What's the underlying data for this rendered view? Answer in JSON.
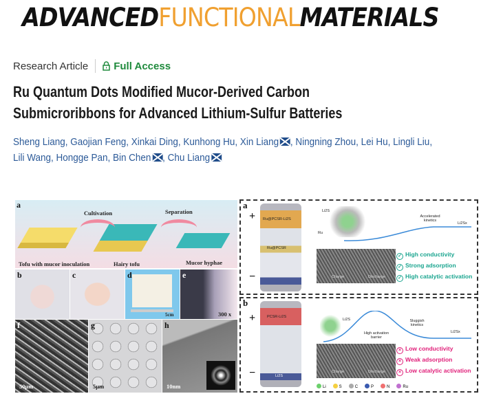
{
  "journal": {
    "logo_parts": [
      "ADVANCED",
      "FUNCTIONAL",
      "MATERIALS"
    ],
    "colors": {
      "dark": "#111111",
      "orange": "#f0a030"
    }
  },
  "article": {
    "type": "Research Article",
    "access": "Full Access",
    "access_icon": "lock-icon",
    "access_color": "#1e8a3c",
    "title_lines": [
      "Ru Quantum Dots Modified Mucor-Derived Carbon",
      "Submicroribbons for Advanced Lithium-Sulfur Batteries"
    ]
  },
  "authors": [
    {
      "name": "Sheng Liang"
    },
    {
      "name": "Gaojian Feng"
    },
    {
      "name": "Xinkai Ding"
    },
    {
      "name": "Kunhong Hu"
    },
    {
      "name": "Xin Liang",
      "email": true
    },
    {
      "name": "Ningning Zhou"
    },
    {
      "name": "Lei Hu"
    },
    {
      "name": "Lingli Liu"
    },
    {
      "name": "Lili Wang"
    },
    {
      "name": "Hongge Pan"
    },
    {
      "name": "Bin Chen",
      "email": true
    },
    {
      "name": "Chu Liang",
      "email": true
    }
  ],
  "figure_left": {
    "panels": [
      "a",
      "b",
      "c",
      "d",
      "e",
      "f",
      "g",
      "h"
    ],
    "arrows": [
      "Cultivation",
      "Separation"
    ],
    "captions": [
      "Tofu with mucor inoculation",
      "Hairy tofu",
      "Mucor hyphae"
    ],
    "scales": {
      "d": "5cm",
      "e": "300 x",
      "f": "50μm",
      "g": "5μm",
      "h": "10nm"
    }
  },
  "figure_right": {
    "a": {
      "label": "a",
      "top_layer": "Ru@PCSR-Li2S",
      "mid_layer": "Ru@PCSR",
      "li2s": "Li2S",
      "ru": "Ru",
      "kinetics": "Accelerated kinetics",
      "product": "Li2Sx",
      "charge": "Charge",
      "discharge": "Discharge",
      "benefits": [
        "High conductivity",
        "Strong adsorption",
        "High catalytic activation"
      ],
      "color": "#1aa58f"
    },
    "b": {
      "label": "b",
      "top_layer": "PCSR-Li2S",
      "li2s": "Li2S",
      "barrier": "High activation barrier",
      "kinetics": "Sluggish kinetics",
      "product": "Li2Sx",
      "charge": "Charge",
      "discharge": "Discharge",
      "bottom": "Li2S",
      "drawbacks": [
        "Low conductivity",
        "Weak adsorption",
        "Low catalytic activation"
      ],
      "color": "#e0207a"
    },
    "legend": [
      {
        "el": "Li",
        "color": "#6cd06c"
      },
      {
        "el": "S",
        "color": "#f5d040"
      },
      {
        "el": "C",
        "color": "#aaaaaa"
      },
      {
        "el": "P",
        "color": "#3a5ab0"
      },
      {
        "el": "N",
        "color": "#f07070"
      },
      {
        "el": "Ru",
        "color": "#c070d0"
      }
    ],
    "plus": "+",
    "minus": "−"
  }
}
